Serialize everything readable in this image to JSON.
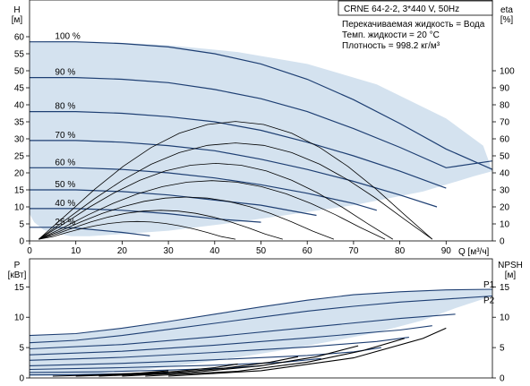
{
  "chart_data": [
    {
      "type": "line",
      "title": "CRNE 64-2-2, 3*440 V, 50Hz",
      "annotations": [
        "Перекачиваемая жидкость = Вода",
        "Темп. жидкости = 20 °C",
        "Плотность = 998.2 кг/м³"
      ],
      "ylabel_left": "H",
      "yunit_left": "[м]",
      "ylabel_right": "eta",
      "yunit_right": "[%]",
      "xlabel": "Q [м³/ч]",
      "xlim": [
        0,
        100
      ],
      "xticks": [
        0,
        10,
        20,
        30,
        40,
        50,
        60,
        70,
        80,
        90
      ],
      "ylim": [
        0,
        60
      ],
      "yticks": [
        0,
        5,
        10,
        15,
        20,
        25,
        30,
        35,
        40,
        45,
        50,
        55,
        60
      ],
      "ylim_right": [
        0,
        120
      ],
      "yticks_right": [
        0,
        10,
        20,
        30,
        40,
        50,
        60,
        70,
        80,
        90,
        100
      ],
      "grid": false,
      "operating_area_boundary": {
        "x": [
          0,
          5,
          15,
          30,
          45,
          60,
          75,
          90,
          98,
          100,
          96,
          85,
          70,
          55,
          42,
          30,
          20,
          13,
          9,
          5,
          3,
          1,
          0
        ],
        "y": [
          58.5,
          58.8,
          58.5,
          57.5,
          55.5,
          52,
          46,
          36,
          28,
          20.5,
          19,
          14.5,
          10.5,
          7.5,
          5,
          3,
          2,
          1.4,
          1.4,
          2.3,
          3.3,
          5.5,
          8
        ]
      },
      "speed_curves": [
        {
          "name": "100 %",
          "x": [
            0,
            10,
            20,
            30,
            40,
            50,
            60,
            70,
            80,
            90,
            100
          ],
          "y": [
            58.5,
            58.5,
            58,
            57,
            55,
            52,
            47.5,
            41.5,
            34.5,
            27,
            21
          ]
        },
        {
          "name": "90 %",
          "x": [
            0,
            10,
            20,
            30,
            40,
            50,
            60,
            70,
            80,
            90,
            100
          ],
          "y": [
            48,
            48,
            47.5,
            46.5,
            44.5,
            41.8,
            38,
            33,
            27.5,
            21.5,
            23.5
          ]
        },
        {
          "name": "80 %",
          "x": [
            0,
            10,
            20,
            30,
            40,
            50,
            60,
            70,
            80,
            90
          ],
          "y": [
            38,
            38,
            37.5,
            36.5,
            35,
            32.5,
            29,
            25,
            20.5,
            15.5
          ]
        },
        {
          "name": "70 %",
          "x": [
            0,
            10,
            20,
            30,
            40,
            50,
            60,
            70,
            80,
            88
          ],
          "y": [
            29.5,
            29.5,
            29,
            28,
            26.5,
            24,
            21,
            17.5,
            13.5,
            10
          ]
        },
        {
          "name": "60 %",
          "x": [
            0,
            10,
            20,
            30,
            40,
            50,
            60,
            70,
            75
          ],
          "y": [
            21.5,
            21.5,
            21,
            20,
            18.5,
            16.5,
            14,
            11,
            9
          ]
        },
        {
          "name": "50 %",
          "x": [
            0,
            10,
            20,
            30,
            40,
            50,
            60,
            62
          ],
          "y": [
            15,
            15,
            14.5,
            13.5,
            12,
            10.5,
            8,
            7.5
          ]
        },
        {
          "name": "40 %",
          "x": [
            0,
            10,
            20,
            30,
            40,
            50
          ],
          "y": [
            9.5,
            9.5,
            9,
            8,
            6.5,
            5.5
          ]
        },
        {
          "name": "25 %",
          "x": [
            0,
            5,
            10,
            20,
            26
          ],
          "y": [
            4,
            4,
            3.8,
            2.5,
            1.5
          ]
        }
      ]
    },
    {
      "type": "line",
      "ylabel_left": "P",
      "yunit_left": "[кВт]",
      "ylabel_right": "NPSH",
      "yunit_right": "[м]",
      "xlim": [
        0,
        100
      ],
      "ylim": [
        0,
        18
      ],
      "yticks": [
        0,
        5,
        10,
        15
      ],
      "ylim_right": [
        0,
        18
      ],
      "yticks_right": [
        0,
        5,
        10,
        15
      ],
      "grid": false,
      "operating_area_boundary": {
        "x": [
          0,
          10,
          20,
          30,
          40,
          50,
          60,
          70,
          80,
          90,
          100,
          100,
          92,
          85,
          75,
          65,
          55,
          45,
          35,
          25,
          15,
          5,
          0
        ],
        "y": [
          7,
          7.3,
          8.2,
          9.3,
          10.5,
          11.7,
          12.8,
          13.7,
          14.2,
          14.5,
          14.6,
          13.5,
          11.5,
          9.5,
          7.5,
          6,
          4.6,
          3.4,
          2.3,
          1.4,
          0.7,
          0.3,
          0.3
        ]
      },
      "series": [
        {
          "name": "P1",
          "x": [
            0,
            10,
            20,
            30,
            40,
            50,
            60,
            70,
            80,
            90,
            100
          ],
          "y": [
            7,
            7.3,
            8.2,
            9.3,
            10.5,
            11.7,
            12.8,
            13.7,
            14.2,
            14.5,
            14.6
          ]
        },
        {
          "name": "P2",
          "x": [
            0,
            10,
            20,
            30,
            40,
            50,
            60,
            70,
            80,
            90,
            100
          ],
          "y": [
            5.8,
            6.2,
            7,
            8,
            9,
            10,
            11,
            11.8,
            12.5,
            13,
            13.5
          ]
        },
        {
          "name": "",
          "x": [
            0,
            20,
            40,
            60,
            80,
            92
          ],
          "y": [
            4.8,
            5.5,
            6.8,
            8.3,
            9.8,
            10.5
          ]
        },
        {
          "name": "",
          "x": [
            0,
            20,
            40,
            60,
            80,
            87
          ],
          "y": [
            3.8,
            4.4,
            5.4,
            6.6,
            7.9,
            8.6
          ]
        },
        {
          "name": "",
          "x": [
            0,
            20,
            40,
            60,
            75,
            82
          ],
          "y": [
            2.9,
            3.4,
            4.2,
            5.1,
            6,
            6.7
          ]
        },
        {
          "name": "",
          "x": [
            0,
            20,
            40,
            60,
            70,
            76
          ],
          "y": [
            2,
            2.4,
            3,
            3.7,
            4.3,
            5
          ]
        },
        {
          "name": "",
          "x": [
            0,
            20,
            40,
            55,
            63
          ],
          "y": [
            1.4,
            1.7,
            2.1,
            2.6,
            3.2
          ]
        },
        {
          "name": "",
          "x": [
            0,
            15,
            30,
            42,
            50
          ],
          "y": [
            0.9,
            1,
            1.3,
            1.6,
            2
          ]
        },
        {
          "name": "",
          "x": [
            0,
            10,
            20,
            30
          ],
          "y": [
            0.5,
            0.55,
            0.7,
            0.9
          ]
        }
      ],
      "npsh_curves": [
        {
          "x": [
            30,
            50,
            70,
            85,
            90
          ],
          "y": [
            0.3,
            1.2,
            3.3,
            6.5,
            8.2
          ]
        },
        {
          "x": [
            25,
            45,
            60,
            72,
            81
          ],
          "y": [
            0.3,
            1.1,
            2.6,
            4.5,
            6.5
          ]
        },
        {
          "x": [
            20,
            35,
            50,
            62,
            71
          ],
          "y": [
            0.3,
            0.9,
            2,
            3.5,
            5.3
          ]
        },
        {
          "x": [
            15,
            30,
            42,
            52,
            58
          ],
          "y": [
            0.3,
            0.8,
            1.6,
            2.6,
            3.5
          ]
        },
        {
          "x": [
            10,
            22,
            32,
            40,
            45
          ],
          "y": [
            0.3,
            0.6,
            1.1,
            1.7,
            2.3
          ]
        },
        {
          "x": [
            5,
            15,
            24,
            30
          ],
          "y": [
            0.3,
            0.5,
            0.8,
            1.2
          ]
        }
      ]
    }
  ]
}
